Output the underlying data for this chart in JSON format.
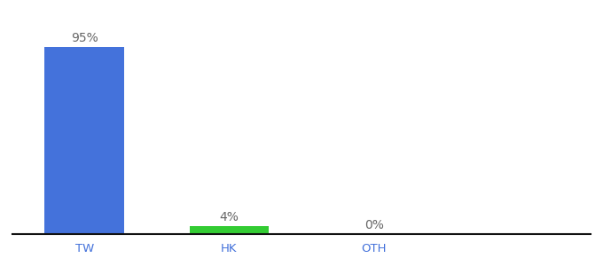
{
  "categories": [
    "TW",
    "HK",
    "OTH"
  ],
  "values": [
    95,
    4,
    0
  ],
  "bar_colors": [
    "#4472db",
    "#33cc33",
    "#4472db"
  ],
  "labels": [
    "95%",
    "4%",
    "0%"
  ],
  "background_color": "#ffffff",
  "label_fontsize": 10,
  "tick_fontsize": 9.5,
  "ylim": [
    0,
    108
  ],
  "bar_width": 0.55,
  "label_color": "#666666",
  "tick_color": "#4472db",
  "spine_color": "#111111"
}
